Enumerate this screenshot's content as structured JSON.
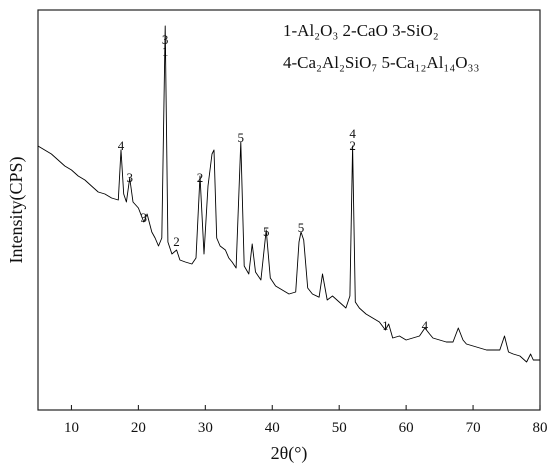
{
  "chart_data": {
    "type": "line",
    "title": "",
    "xlabel": "2θ(°)",
    "ylabel": "Intensity(CPS)",
    "xlim": [
      5,
      80
    ],
    "ylim": [
      0,
      1000
    ],
    "x_ticks": [
      "10",
      "20",
      "30",
      "40",
      "50",
      "60",
      "70",
      "80"
    ],
    "y_ticks_shown": false,
    "grid": false,
    "legend_position": "top-right",
    "legend_entries": [
      "1-Al₂O₃   2-CaO   3-SiO₂",
      "4-Ca₂Al₂SiO₇   5-Ca₁₂Al₁₄O₃₃"
    ],
    "peak_labels": [
      {
        "x": 17.4,
        "y": 650,
        "text": "4"
      },
      {
        "x": 18.7,
        "y": 570,
        "text": "3"
      },
      {
        "x": 20.8,
        "y": 470,
        "text": "3"
      },
      {
        "x": 24.0,
        "y": 915,
        "text": "3"
      },
      {
        "x": 24.0,
        "y": 885,
        "text": "1"
      },
      {
        "x": 25.7,
        "y": 410,
        "text": "2"
      },
      {
        "x": 29.2,
        "y": 570,
        "text": "2"
      },
      {
        "x": 35.3,
        "y": 670,
        "text": "5"
      },
      {
        "x": 39.1,
        "y": 435,
        "text": "5"
      },
      {
        "x": 44.3,
        "y": 445,
        "text": "5"
      },
      {
        "x": 52.0,
        "y": 680,
        "text": "4"
      },
      {
        "x": 52.0,
        "y": 650,
        "text": "2"
      },
      {
        "x": 56.9,
        "y": 200,
        "text": "1"
      },
      {
        "x": 62.8,
        "y": 200,
        "text": "4"
      }
    ],
    "series": [
      {
        "x": [
          5,
          6,
          7,
          8,
          9,
          10,
          11,
          12,
          13,
          14,
          15,
          16,
          17,
          17.4,
          17.8,
          18.2,
          18.7,
          19.2,
          20,
          20.8,
          21.3,
          22,
          22.5,
          23,
          23.5,
          24.0,
          24.4,
          25,
          25.7,
          26.2,
          27,
          28,
          28.6,
          29.2,
          29.8,
          30.4,
          31.0,
          31.3,
          31.7,
          32.2,
          33,
          33.5,
          34,
          34.6,
          35.3,
          35.8,
          36.5,
          37.0,
          37.5,
          38.3,
          39.1,
          39.7,
          40.5,
          41.5,
          42.5,
          43.5,
          44.0,
          44.3,
          44.7,
          45.3,
          46,
          47,
          47.5,
          48.2,
          49,
          50,
          51,
          51.6,
          52.0,
          52.4,
          53,
          54,
          55,
          56,
          56.9,
          57.4,
          58,
          59,
          60,
          61,
          62,
          62.8,
          63.5,
          64,
          65,
          66,
          67,
          67.8,
          68.5,
          69,
          70,
          71,
          72,
          73,
          74,
          74.7,
          75.3,
          76,
          77,
          78,
          78.6,
          79,
          80
        ],
        "y": [
          660,
          650,
          640,
          625,
          610,
          600,
          585,
          575,
          560,
          545,
          540,
          530,
          525,
          650,
          540,
          520,
          580,
          520,
          505,
          470,
          490,
          445,
          430,
          410,
          430,
          960,
          420,
          390,
          400,
          375,
          370,
          365,
          380,
          585,
          390,
          560,
          640,
          650,
          430,
          410,
          400,
          380,
          370,
          355,
          670,
          360,
          340,
          415,
          345,
          325,
          450,
          330,
          310,
          300,
          290,
          295,
          420,
          445,
          425,
          305,
          290,
          282,
          340,
          275,
          285,
          270,
          255,
          285,
          660,
          270,
          255,
          240,
          230,
          220,
          200,
          215,
          180,
          185,
          175,
          180,
          185,
          205,
          190,
          180,
          175,
          170,
          170,
          205,
          175,
          165,
          160,
          155,
          150,
          150,
          150,
          185,
          145,
          140,
          135,
          120,
          140,
          125,
          125
        ]
      }
    ]
  }
}
